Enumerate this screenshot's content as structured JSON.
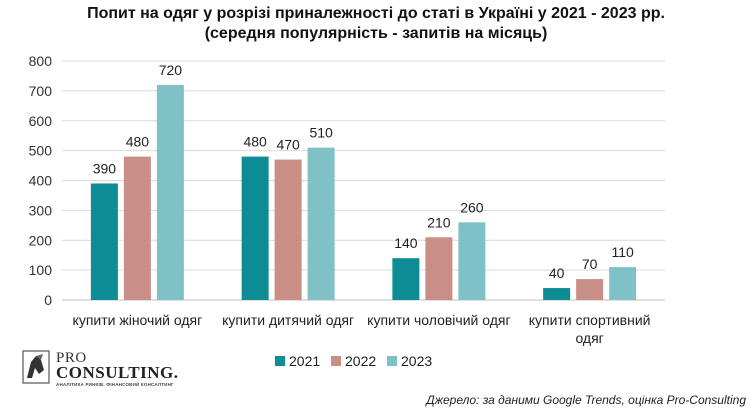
{
  "chart_data": {
    "type": "bar",
    "title": "Попит на одяг у розрізі приналежності до статі в Україні у 2021 - 2023 рр.",
    "subtitle": "(середня популярність - запитів на місяць)",
    "categories": [
      "купити жіночий одяг",
      "купити дитячий одяг",
      "купити чоловічий одяг",
      "купити спортивний одяг"
    ],
    "series": [
      {
        "name": "2021",
        "color": "#0e8c95",
        "values": [
          390,
          480,
          140,
          40
        ]
      },
      {
        "name": "2022",
        "color": "#c98e86",
        "values": [
          480,
          470,
          210,
          70
        ]
      },
      {
        "name": "2023",
        "color": "#80c0c7",
        "values": [
          720,
          510,
          260,
          110
        ]
      }
    ],
    "ylim": [
      0,
      800
    ],
    "yticks": [
      0,
      100,
      200,
      300,
      400,
      500,
      600,
      700,
      800
    ],
    "grid": true,
    "legend_position": "bottom",
    "data_labels": true
  },
  "logo": {
    "pro": "PRO",
    "name": "CONSULTING.",
    "tagline": "АНАЛІТИКА РИНКІВ. ФІНАНСОВИЙ КОНСАЛТИНГ"
  },
  "source_text": "Джерело: за даними Google Trends, оцінка Pro-Consulting"
}
